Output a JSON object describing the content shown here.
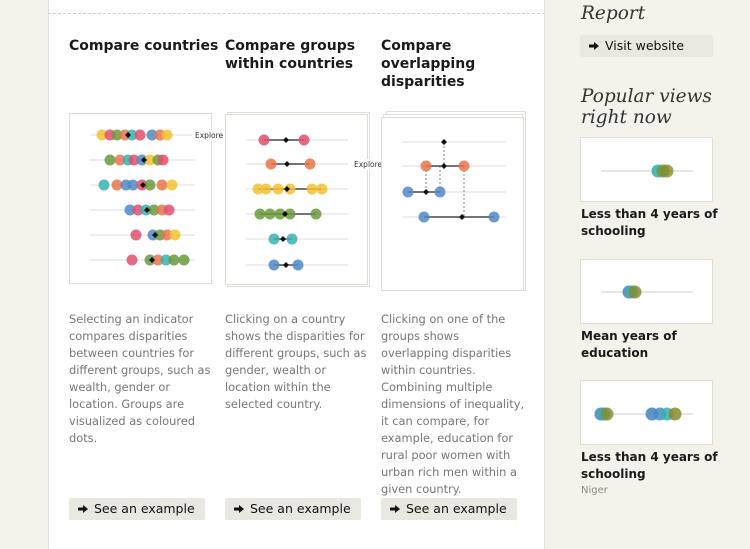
{
  "columns": [
    {
      "title": "Compare countries",
      "description": "Selecting an indicator compares disparities between countries for different groups, such as wealth, gender or location. Groups are visualized as coloured dots.",
      "button_label": "See an example",
      "explore_label": "Explore"
    },
    {
      "title": "Compare groups within countries",
      "description": "Clicking on a country shows the disparities for different groups, such as gender, wealth or location within the selected country.",
      "button_label": "See an example",
      "explore_label": "Explore"
    },
    {
      "title": "Compare overlapping disparities",
      "description": "Clicking on one of the groups shows overlapping disparities within countries. Combining multiple dimensions of inequality, it can compare, for example, education for rural poor women with urban rich men within a given country.",
      "button_label": "See an example"
    }
  ],
  "sidebar": {
    "report_heading": "Report",
    "visit_label": "Visit website",
    "popular_heading": "Popular views right now",
    "popular_views": [
      {
        "label": "Less than 4 years of schooling",
        "sublabel": ""
      },
      {
        "label": "Mean years of education",
        "sublabel": ""
      },
      {
        "label": "Less than 4 years of schooling",
        "sublabel": "Niger"
      }
    ]
  },
  "colors": {
    "red": "#e0506e",
    "orange": "#e8764a",
    "yellow": "#f2c230",
    "green": "#6a9a3c",
    "teal": "#38b0b0",
    "blue": "#4f8ac4",
    "purple": "#7a5aa8",
    "olive": "#8a8a2a"
  }
}
